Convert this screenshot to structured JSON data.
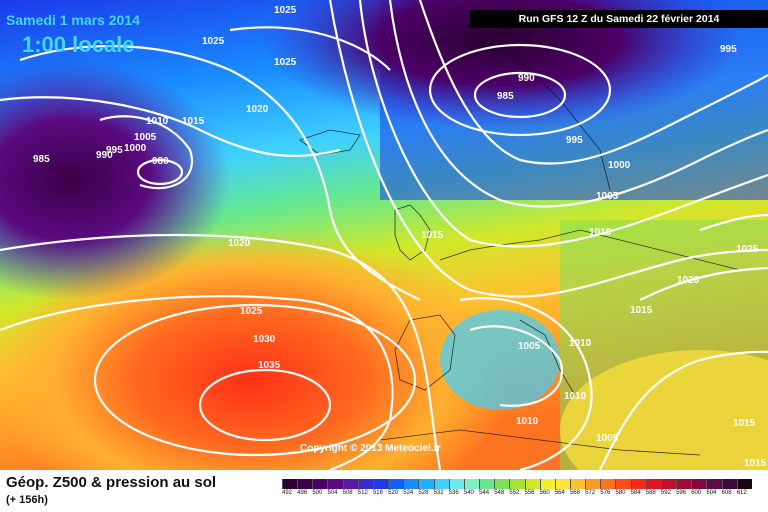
{
  "header": {
    "date": "Samedi 1 mars 2014",
    "hour": "1:00 locale",
    "run": "Run GFS 12 Z du Samedi 22 février 2014"
  },
  "footer": {
    "parameter": "Géop. Z500 & pression au sol",
    "lead_time": "(+ 156h)",
    "copyright": "Copyright © 2013 Meteociel.fr"
  },
  "legend": {
    "ticks": [
      "492",
      "496",
      "500",
      "504",
      "508",
      "512",
      "516",
      "520",
      "524",
      "528",
      "532",
      "536",
      "540",
      "544",
      "548",
      "552",
      "556",
      "560",
      "564",
      "568",
      "572",
      "576",
      "580",
      "584",
      "588",
      "592",
      "596",
      "600",
      "604",
      "608",
      "612"
    ],
    "colors": [
      "#2a0030",
      "#3b0046",
      "#4c0066",
      "#5a0a80",
      "#5a1aa6",
      "#3a2bd0",
      "#1c3aea",
      "#1360ff",
      "#1a8cff",
      "#20b0ff",
      "#3fd0ff",
      "#6fe6f0",
      "#7ff0c0",
      "#66e890",
      "#7fe05a",
      "#a6e03a",
      "#d0e82a",
      "#f0f030",
      "#ffe23a",
      "#ffc030",
      "#ff9a28",
      "#ff7420",
      "#ff4a1a",
      "#ff2618",
      "#e01420",
      "#c0102a",
      "#a00c36",
      "#800a40",
      "#600a44",
      "#400a40",
      "#1a0810"
    ]
  },
  "pressure_labels": [
    "1025",
    "1025",
    "1025",
    "1020",
    "1015",
    "1010",
    "1005",
    "1000",
    "995",
    "990",
    "985",
    "980",
    "990",
    "985",
    "995",
    "995",
    "1000",
    "1005",
    "1010",
    "1015",
    "1020",
    "1025",
    "1030",
    "1035",
    "1015",
    "1005",
    "1010",
    "1010",
    "1010",
    "1005",
    "1015",
    "1020",
    "1025",
    "1015"
  ]
}
